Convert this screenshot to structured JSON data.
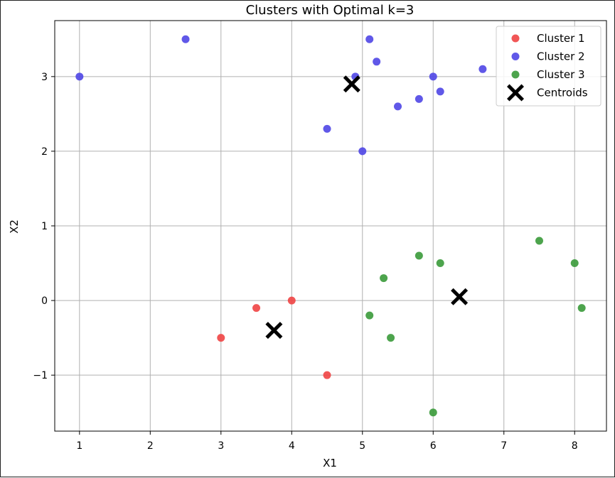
{
  "chart_data": {
    "type": "scatter",
    "title": "Clusters with Optimal k=3",
    "xlabel": "X1",
    "ylabel": "X2",
    "xlim": [
      0.65,
      8.45
    ],
    "ylim": [
      -1.75,
      3.75
    ],
    "xticks": [
      1,
      2,
      3,
      4,
      5,
      6,
      7,
      8
    ],
    "yticks": [
      -1,
      0,
      1,
      2,
      3
    ],
    "ytick_labels": [
      "−1",
      "0",
      "1",
      "2",
      "3"
    ],
    "grid": true,
    "legend_position": "top-right",
    "series": [
      {
        "name": "Cluster 1",
        "color": "#ef4444",
        "marker": "circle",
        "points": [
          [
            3.0,
            -0.5
          ],
          [
            3.5,
            -0.1
          ],
          [
            4.0,
            0.0
          ],
          [
            4.5,
            -1.0
          ]
        ]
      },
      {
        "name": "Cluster 2",
        "color": "#4f46e5",
        "marker": "circle",
        "points": [
          [
            1.0,
            3.0
          ],
          [
            2.5,
            3.5
          ],
          [
            4.5,
            2.3
          ],
          [
            4.9,
            3.0
          ],
          [
            5.0,
            2.0
          ],
          [
            5.1,
            3.5
          ],
          [
            5.2,
            3.2
          ],
          [
            5.5,
            2.6
          ],
          [
            5.8,
            2.7
          ],
          [
            6.0,
            3.0
          ],
          [
            6.1,
            2.8
          ],
          [
            6.7,
            3.1
          ]
        ]
      },
      {
        "name": "Cluster 3",
        "color": "#3a9a3a",
        "marker": "circle",
        "points": [
          [
            5.1,
            -0.2
          ],
          [
            5.3,
            0.3
          ],
          [
            5.4,
            -0.5
          ],
          [
            5.8,
            0.6
          ],
          [
            6.0,
            -1.5
          ],
          [
            6.1,
            0.5
          ],
          [
            7.5,
            0.8
          ],
          [
            8.0,
            0.5
          ],
          [
            8.1,
            -0.1
          ]
        ]
      },
      {
        "name": "Centroids",
        "color": "#000000",
        "marker": "x",
        "points": [
          [
            3.75,
            -0.4
          ],
          [
            4.85,
            2.9
          ],
          [
            6.37,
            0.05
          ]
        ]
      }
    ]
  }
}
